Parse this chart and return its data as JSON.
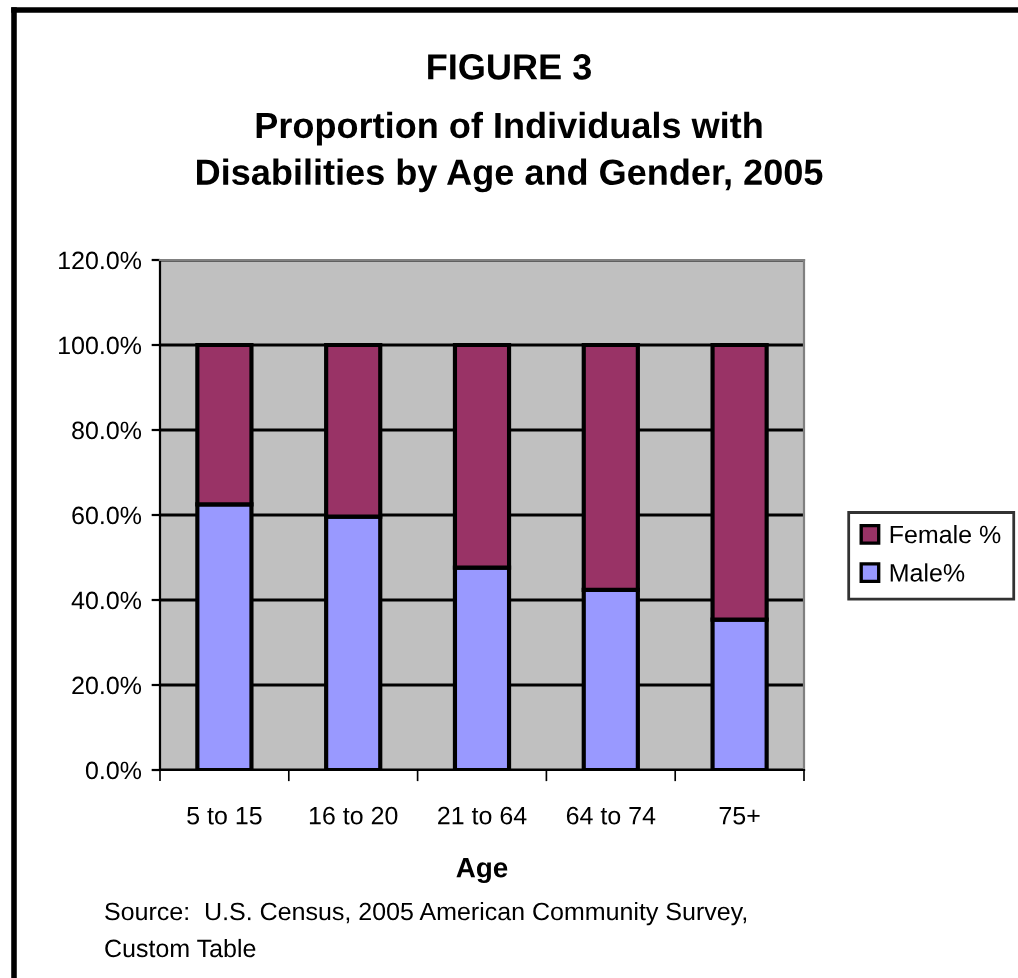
{
  "chart_data": {
    "type": "bar",
    "title": "FIGURE 3",
    "subtitle": "Proportion of Individuals with Disabilities by Age and Gender, 2005",
    "xlabel": "Age",
    "annotations": [
      "Source:  U.S. Census, 2005 American Community Survey, Custom Table"
    ],
    "categories": [
      "5 to 15",
      "16 to 20",
      "21 to 64",
      "64 to 74",
      "75+"
    ],
    "stacked": true,
    "series": [
      {
        "name": "Male%",
        "color": "#9999ff",
        "values": [
          62.5,
          59.6,
          47.6,
          42.4,
          35.4
        ]
      },
      {
        "name": "Female %",
        "color": "#993366",
        "values": [
          37.5,
          40.4,
          52.4,
          57.6,
          64.6
        ]
      }
    ],
    "ylim": [
      0,
      120
    ],
    "yticks": [
      {
        "value": 0,
        "label": "0.0%"
      },
      {
        "value": 20,
        "label": "20.0%"
      },
      {
        "value": 40,
        "label": "40.0%"
      },
      {
        "value": 60,
        "label": "60.0%"
      },
      {
        "value": 80,
        "label": "80.0%"
      },
      {
        "value": 100,
        "label": "100.0%"
      },
      {
        "value": 120,
        "label": "120.0%"
      }
    ],
    "grid": "y",
    "legend": "right"
  }
}
